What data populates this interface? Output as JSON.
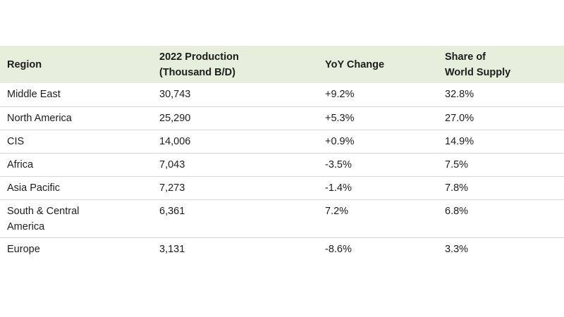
{
  "chart_data": {
    "type": "table",
    "columns": [
      "Region",
      "2022 Production (Thousand B/D)",
      "YoY Change",
      "Share of World Supply"
    ],
    "header": {
      "region": "Region",
      "production_line1": "2022 Production",
      "production_line2": "(Thousand B/D)",
      "yoy": "YoY Change",
      "share_line1": "Share of",
      "share_line2": "World Supply"
    },
    "rows": [
      {
        "region": "Middle East",
        "production": "30,743",
        "yoy": "+9.2%",
        "share": "32.8%"
      },
      {
        "region": "North America",
        "production": "25,290",
        "yoy": "+5.3%",
        "share": "27.0%"
      },
      {
        "region": "CIS",
        "production": "14,006",
        "yoy": "+0.9%",
        "share": "14.9%"
      },
      {
        "region": "Africa",
        "production": "7,043",
        "yoy": "-3.5%",
        "share": "7.5%"
      },
      {
        "region": "Asia Pacific",
        "production": "7,273",
        "yoy": "-1.4%",
        "share": "7.8%"
      },
      {
        "region": "South & Central America",
        "production": "6,361",
        "yoy": "7.2%",
        "share": "6.8%"
      },
      {
        "region": "Europe",
        "production": "3,131",
        "yoy": "-8.6%",
        "share": "3.3%"
      }
    ],
    "colors": {
      "header_background": "#e6efdb",
      "row_divider": "#d6d6d6"
    }
  }
}
